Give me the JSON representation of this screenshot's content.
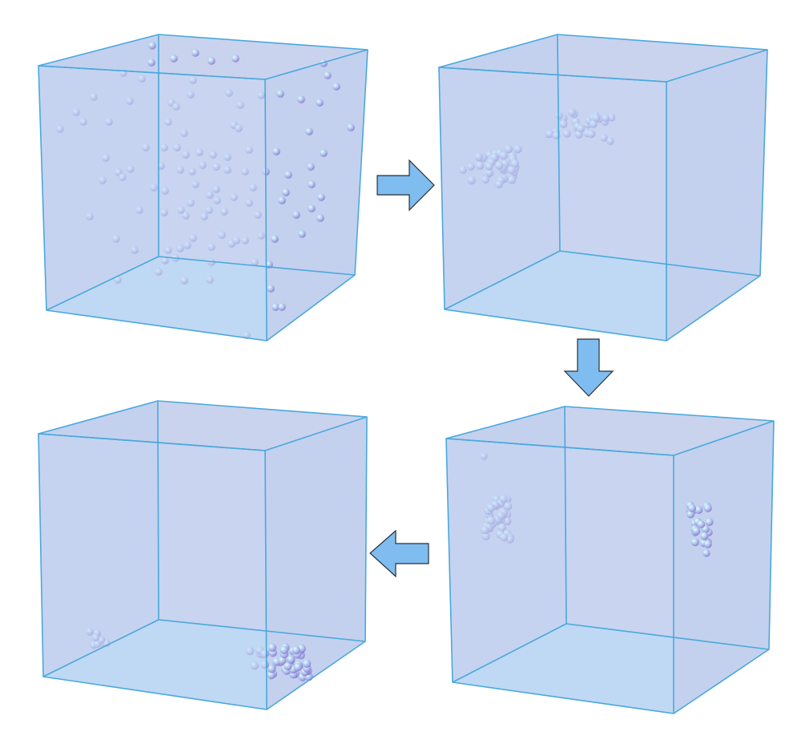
{
  "figure": {
    "description_visible_text": "",
    "panels": [
      {
        "name": "panel-dispersed",
        "state": "particles dispersed throughout box",
        "particle_count": 120
      },
      {
        "name": "panel-two-clusters",
        "state": "two clusters forming",
        "particle_count": 55
      },
      {
        "name": "panel-clusters-on-walls",
        "state": "clusters attached to side walls",
        "particle_count": 48
      },
      {
        "name": "panel-clusters-on-floor",
        "state": "clusters settled on floor",
        "particle_count": 52
      }
    ],
    "arrows": [
      {
        "name": "arrow-right",
        "direction": "right",
        "from": "panel-dispersed",
        "to": "panel-two-clusters"
      },
      {
        "name": "arrow-down",
        "direction": "down",
        "from": "panel-two-clusters",
        "to": "panel-clusters-on-walls"
      },
      {
        "name": "arrow-left",
        "direction": "left",
        "from": "panel-clusters-on-walls",
        "to": "panel-clusters-on-floor"
      }
    ]
  },
  "colors": {
    "box_edge": "#4aa8dc",
    "box_faces": "#c9d3ee",
    "box_floor": "#b5dcf6",
    "particle": "#a9a6e6",
    "particle_highlight": "#e6f6ff",
    "arrow_fill": "#7fbdf0",
    "arrow_stroke": "#2a2f36"
  }
}
